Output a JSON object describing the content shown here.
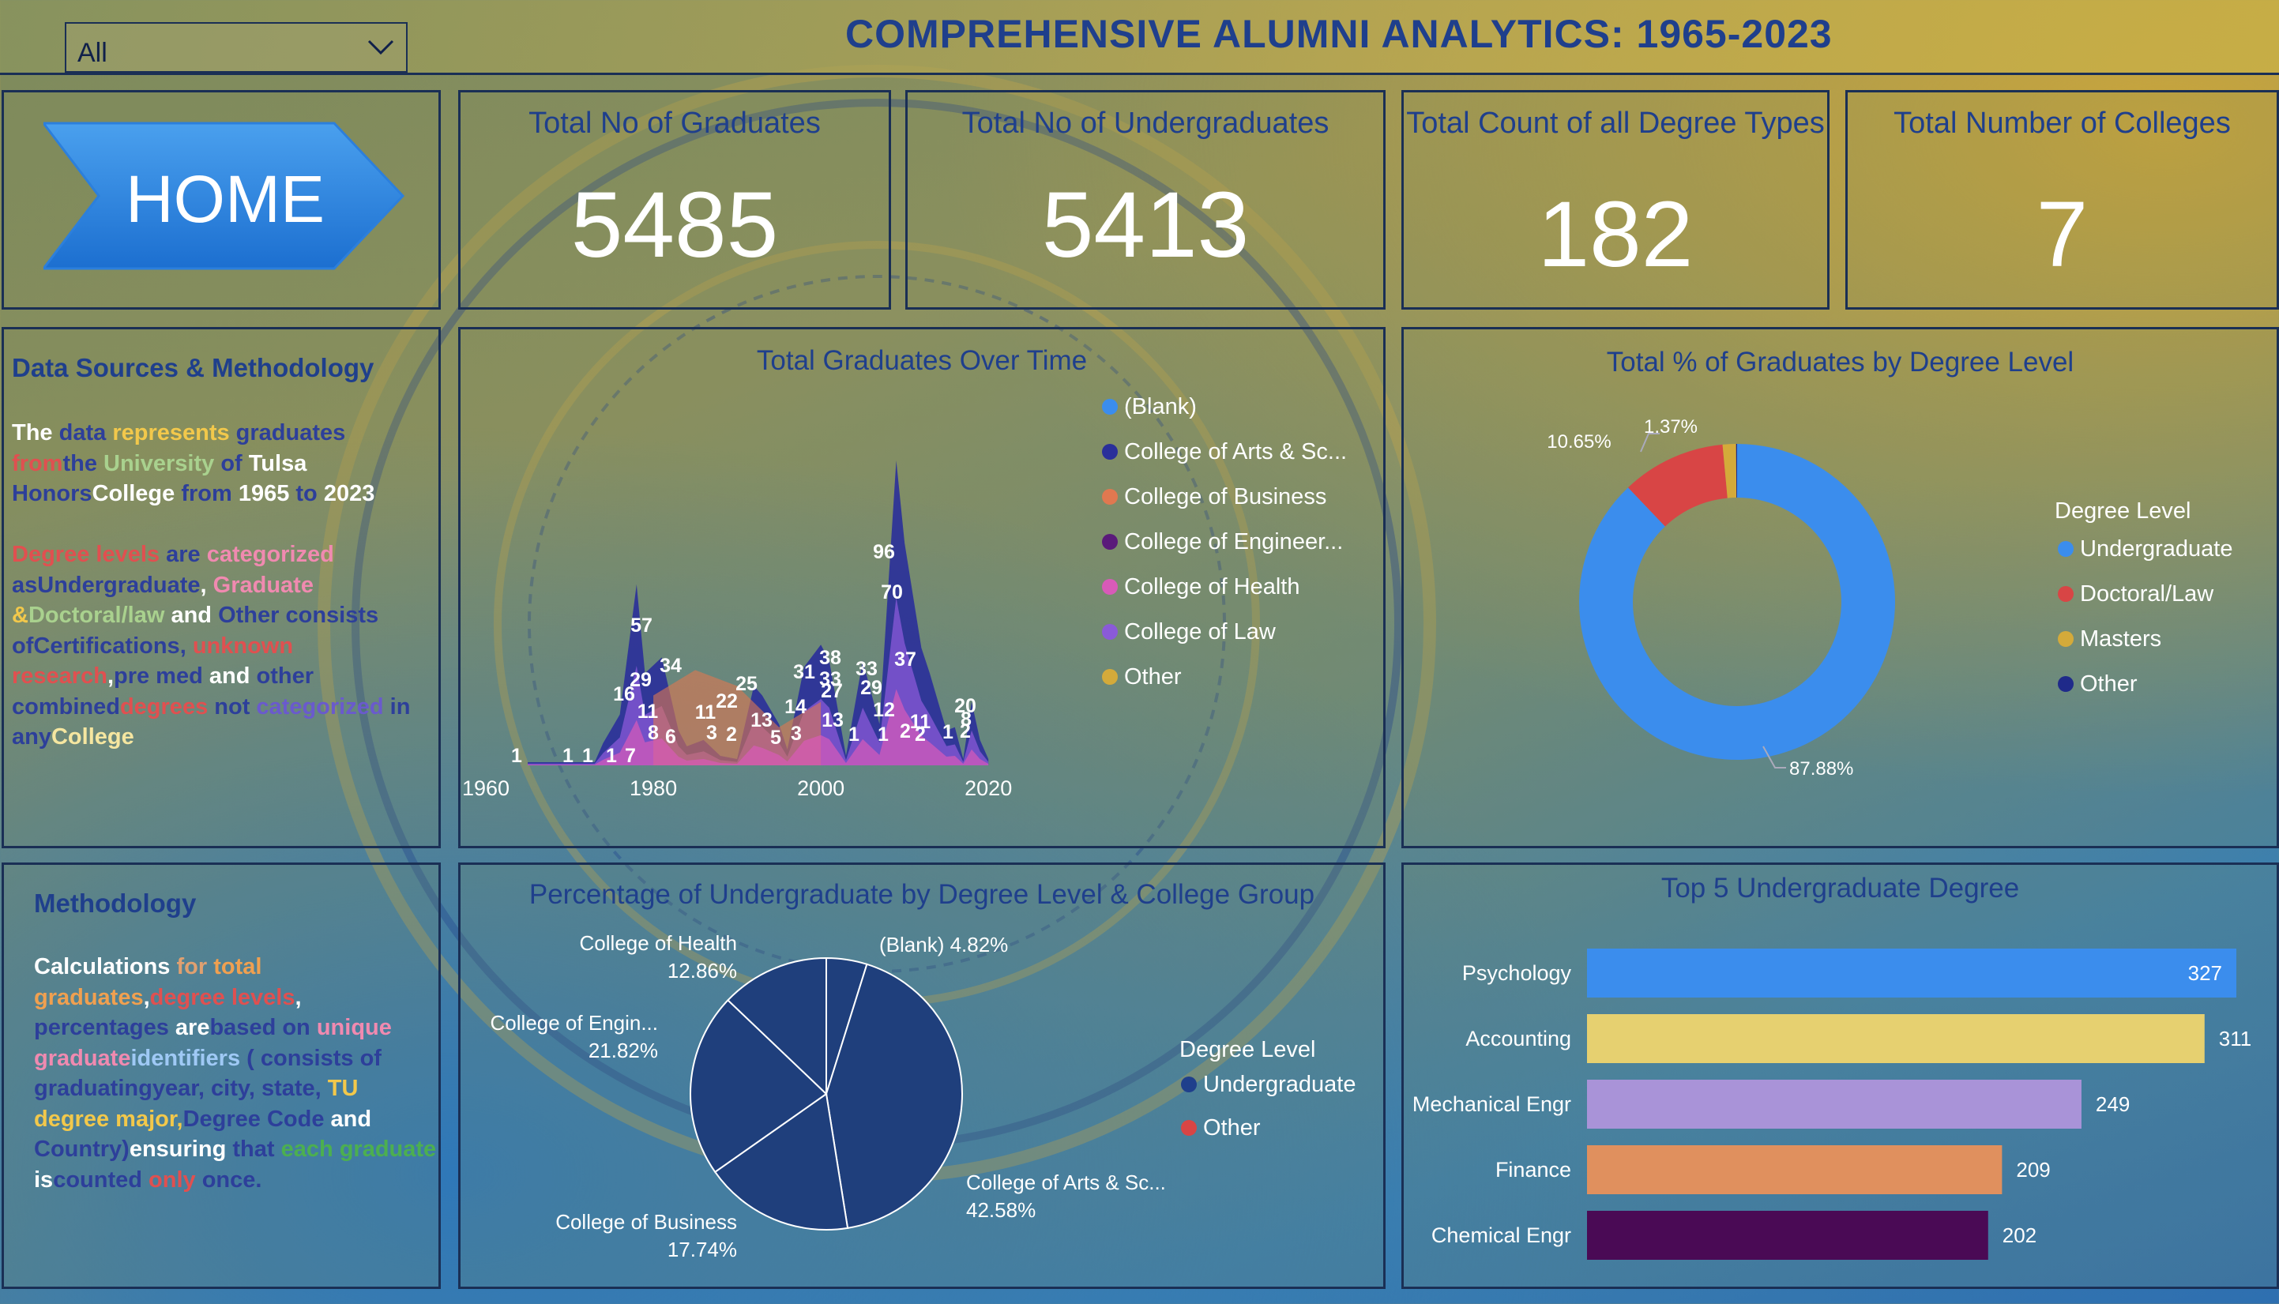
{
  "title": "COMPREHENSIVE ALUMNI ANALYTICS: 1965-2023",
  "slicer": {
    "value": "All"
  },
  "home": {
    "label": "HOME"
  },
  "kpis": [
    {
      "title": "Total No of Graduates",
      "value": "5485"
    },
    {
      "title": "Total No of Undergraduates",
      "value": "5413"
    },
    {
      "title": "Total Count of all Degree Types",
      "value": "182"
    },
    {
      "title": "Total Number of Colleges",
      "value": "7"
    }
  ],
  "data_sources": {
    "heading": "Data Sources & Methodology",
    "para1": [
      {
        "t": "The ",
        "c": "#ffffff"
      },
      {
        "t": "data ",
        "c": "#2d3f9a"
      },
      {
        "t": "represents ",
        "c": "#f2c84b"
      },
      {
        "t": "graduates ",
        "c": "#2d3f9a"
      },
      {
        "t": "from",
        "c": "#e05050"
      },
      {
        "t": "the ",
        "c": "#2d3f9a"
      },
      {
        "t": "University ",
        "c": "#a9d18e"
      },
      {
        "t": "of ",
        "c": "#2d3f9a"
      },
      {
        "t": "Tulsa ",
        "c": "#ffffff"
      },
      {
        "t": "Honors",
        "c": "#2d3f9a"
      },
      {
        "t": "College ",
        "c": "#ffffff"
      },
      {
        "t": "from ",
        "c": "#2d3f9a"
      },
      {
        "t": "1965 ",
        "c": "#ffffff"
      },
      {
        "t": "to ",
        "c": "#2d3f9a"
      },
      {
        "t": "2023",
        "c": "#ffffff"
      }
    ],
    "para2": [
      {
        "t": "Degree levels ",
        "c": "#e05050"
      },
      {
        "t": "are ",
        "c": "#2d3f9a"
      },
      {
        "t": "categorized ",
        "c": "#f08ab0"
      },
      {
        "t": "as",
        "c": "#2d3f9a"
      },
      {
        "t": "Undergraduate",
        "c": "#2d3f9a"
      },
      {
        "t": ", ",
        "c": "#ffffff"
      },
      {
        "t": "Graduate ",
        "c": "#f08ab0"
      },
      {
        "t": "&",
        "c": "#f2c84b"
      },
      {
        "t": "Doctoral/law ",
        "c": "#a9d18e"
      },
      {
        "t": "and ",
        "c": "#ffffff"
      },
      {
        "t": "Other ",
        "c": "#2d3f9a"
      },
      {
        "t": "consists of",
        "c": "#2d3f9a"
      },
      {
        "t": "Certifications, ",
        "c": "#2d3f9a"
      },
      {
        "t": "unknown research",
        "c": "#e05050"
      },
      {
        "t": ",",
        "c": "#ffffff"
      },
      {
        "t": "pre med ",
        "c": "#2d3f9a"
      },
      {
        "t": "and ",
        "c": "#ffffff"
      },
      {
        "t": "other combined",
        "c": "#2d3f9a"
      },
      {
        "t": "degrees ",
        "c": "#e05050"
      },
      {
        "t": "not ",
        "c": "#2d3f9a"
      },
      {
        "t": "categorized ",
        "c": "#6a5acd"
      },
      {
        "t": "in any",
        "c": "#2d3f9a"
      },
      {
        "t": "College",
        "c": "#f5e6a0"
      }
    ]
  },
  "methodology": {
    "heading": "Methodology",
    "para": [
      {
        "t": "Calculations ",
        "c": "#ffffff"
      },
      {
        "t": "for ",
        "c": "#e0a070"
      },
      {
        "t": "total graduates",
        "c": "#f0a050"
      },
      {
        "t": ",",
        "c": "#ffffff"
      },
      {
        "t": "degree levels",
        "c": "#e05050"
      },
      {
        "t": ", ",
        "c": "#ffffff"
      },
      {
        "t": "percentages ",
        "c": "#2d3f9a"
      },
      {
        "t": "are",
        "c": "#ffffff"
      },
      {
        "t": "based on ",
        "c": "#2d3f9a"
      },
      {
        "t": "unique graduate",
        "c": "#f08ab0"
      },
      {
        "t": "identifiers ",
        "c": "#9fc9f5"
      },
      {
        "t": "( consists of graduating",
        "c": "#2d3f9a"
      },
      {
        "t": "year, city, state, ",
        "c": "#2d3f9a"
      },
      {
        "t": "TU degree major,",
        "c": "#f2c84b"
      },
      {
        "t": "Degree Code ",
        "c": "#2d3f9a"
      },
      {
        "t": "and ",
        "c": "#ffffff"
      },
      {
        "t": "Country)",
        "c": "#2d3f9a"
      },
      {
        "t": "ensuring ",
        "c": "#ffffff"
      },
      {
        "t": "that ",
        "c": "#2d3f9a"
      },
      {
        "t": "each graduate ",
        "c": "#4caf50"
      },
      {
        "t": "is",
        "c": "#ffffff"
      },
      {
        "t": "counted ",
        "c": "#2d3f9a"
      },
      {
        "t": "only ",
        "c": "#e05050"
      },
      {
        "t": "once.",
        "c": "#2d3f9a"
      }
    ]
  },
  "chart_data": [
    {
      "type": "area",
      "title": "Total Graduates Over Time",
      "xlim": [
        1960,
        2023
      ],
      "x_ticks": [
        "1960",
        "1980",
        "2000",
        "2020"
      ],
      "legend": [
        {
          "name": "(Blank)",
          "color": "#3b8ded"
        },
        {
          "name": "College of Arts & Sc...",
          "color": "#2a2f9a"
        },
        {
          "name": "College of Business",
          "color": "#e07850"
        },
        {
          "name": "College of Engineer...",
          "color": "#5a1a7a"
        },
        {
          "name": "College of Health",
          "color": "#d85ab8"
        },
        {
          "name": "College of Law",
          "color": "#8a5ad8"
        },
        {
          "name": "Other",
          "color": "#d4aa3a"
        }
      ],
      "series": [
        {
          "name": "College of Arts & Sc...",
          "values": [
            [
              1965,
              1
            ],
            [
              1970,
              1
            ],
            [
              1971,
              1
            ],
            [
              1973,
              1
            ],
            [
              1974,
              7
            ],
            [
              1976,
              16
            ],
            [
              1978,
              57
            ],
            [
              1979,
              29
            ],
            [
              1981,
              34
            ],
            [
              1983,
              11
            ],
            [
              1984,
              6
            ],
            [
              1986,
              8
            ],
            [
              1988,
              3
            ],
            [
              1990,
              2
            ],
            [
              1992,
              25
            ],
            [
              1993,
              22
            ],
            [
              1995,
              13
            ],
            [
              1996,
              5
            ],
            [
              1998,
              31
            ],
            [
              2000,
              38
            ],
            [
              2001,
              33
            ],
            [
              2003,
              3
            ],
            [
              2005,
              33
            ],
            [
              2007,
              13
            ],
            [
              2009,
              96
            ],
            [
              2010,
              70
            ],
            [
              2012,
              37
            ],
            [
              2013,
              29
            ],
            [
              2015,
              11
            ],
            [
              2016,
              12
            ],
            [
              2017,
              2
            ],
            [
              2018,
              20
            ],
            [
              2019,
              8
            ],
            [
              2020,
              2
            ]
          ]
        },
        {
          "name": "College of Business",
          "values": [
            [
              1980,
              22
            ],
            [
              1985,
              30
            ],
            [
              1990,
              25
            ],
            [
              1995,
              12
            ],
            [
              2000,
              20
            ]
          ]
        }
      ],
      "data_labels": [
        "1",
        "1",
        "1",
        "1",
        "7",
        "16",
        "11",
        "57",
        "29",
        "34",
        "8",
        "6",
        "3",
        "2",
        "11",
        "22",
        "25",
        "13",
        "5",
        "14",
        "31",
        "38",
        "33",
        "27",
        "3",
        "13",
        "1",
        "33",
        "29",
        "1",
        "12",
        "37",
        "70",
        "96",
        "11",
        "2",
        "2",
        "1",
        "20",
        "8",
        "2"
      ]
    },
    {
      "type": "pie",
      "title": "Total % of Graduates by Degree Level",
      "legend_title": "Degree Level",
      "slices": [
        {
          "name": "Undergraduate",
          "value": 87.88,
          "label": "87.88%",
          "color": "#3b8ded"
        },
        {
          "name": "Doctoral/Law",
          "value": 10.65,
          "label": "10.65%",
          "color": "#d84545"
        },
        {
          "name": "Masters",
          "value": 1.37,
          "label": "1.37%",
          "color": "#d4aa3a"
        },
        {
          "name": "Other",
          "value": 0.1,
          "label": "",
          "color": "#1f2a8a"
        }
      ]
    },
    {
      "type": "pie",
      "title": "Percentage of Undergraduate by Degree Level & College Group",
      "legend_title": "Degree Level",
      "legend": [
        {
          "name": "Undergraduate",
          "color": "#1f3f8c"
        },
        {
          "name": "Other",
          "color": "#d84545"
        }
      ],
      "slices": [
        {
          "name": "(Blank)",
          "value": 4.82,
          "label": "(Blank) 4.82%"
        },
        {
          "name": "College of Arts & Sc...",
          "value": 42.58,
          "label": "42.58%"
        },
        {
          "name": "College of Business",
          "value": 17.74,
          "label": "17.74%"
        },
        {
          "name": "College of Engin...",
          "value": 21.82,
          "label": "21.82%"
        },
        {
          "name": "College of Health",
          "value": 12.86,
          "label": "12.86%"
        }
      ]
    },
    {
      "type": "bar",
      "title": "Top 5 Undergraduate Degree",
      "categories": [
        "Psychology",
        "Accounting",
        "Mechanical Engr",
        "Finance",
        "Chemical Engr"
      ],
      "values": [
        327,
        311,
        249,
        209,
        202
      ],
      "colors": [
        "#3b8ded",
        "#e6d070",
        "#a993d8",
        "#e0905e",
        "#4a0a55"
      ]
    }
  ]
}
